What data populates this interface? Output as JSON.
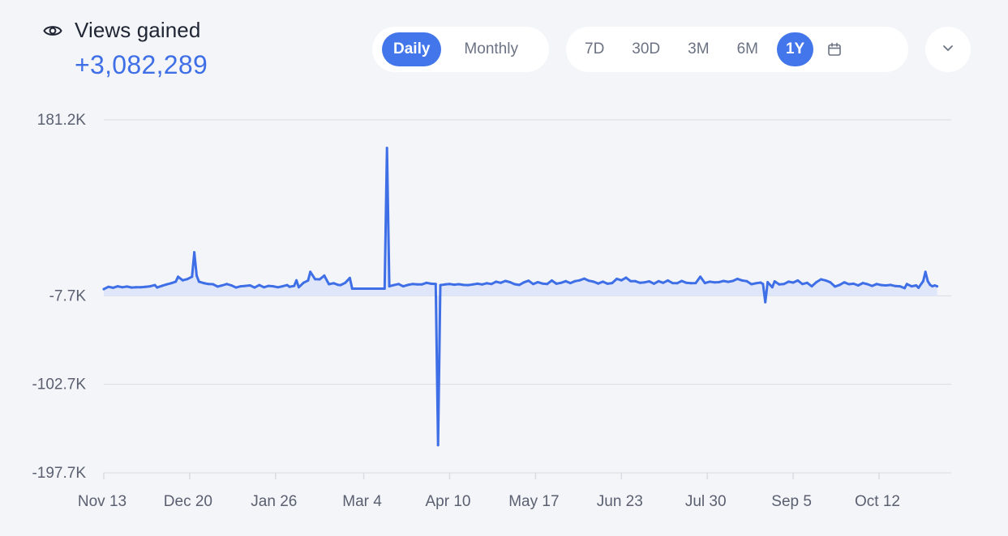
{
  "header": {
    "icon": "eye-icon",
    "title": "Views gained",
    "total": "+3,082,289"
  },
  "granularity": {
    "options": [
      "Daily",
      "Monthly"
    ],
    "selected": "Daily"
  },
  "ranges": {
    "options": [
      "7D",
      "30D",
      "3M",
      "6M",
      "1Y"
    ],
    "selected": "1Y",
    "calendar_icon": "calendar-icon"
  },
  "expand_icon": "chevron-down-icon",
  "colors": {
    "accent": "#4276ea",
    "line": "#3f6fe6",
    "fill": "#dfe6f9",
    "grid": "#d9dce3",
    "background": "#f4f5f9"
  },
  "chart_data": {
    "type": "area",
    "title": "",
    "xlabel": "",
    "ylabel": "",
    "ylim": [
      -197.7,
      181.2
    ],
    "y_unit": "K",
    "y_ticks": [
      "181.2K",
      "-7.7K",
      "-102.7K",
      "-197.7K"
    ],
    "y_tick_values": [
      181.2,
      -7.7,
      -102.7,
      -197.7
    ],
    "x_ticks": [
      "Nov 13",
      "Dec 20",
      "Jan 26",
      "Mar 4",
      "Apr 10",
      "May 17",
      "Jun 23",
      "Jul 30",
      "Sep 5",
      "Oct 12"
    ],
    "x_tick_dates": [
      "2023-11-13",
      "2023-12-20",
      "2024-01-26",
      "2024-03-04",
      "2024-04-10",
      "2024-05-17",
      "2024-06-23",
      "2024-07-30",
      "2024-09-05",
      "2024-10-12"
    ],
    "x_range": [
      "2023-11-13",
      "2024-11-06"
    ],
    "grid": true,
    "legend": "none",
    "series": [
      {
        "points": [
          [
            "2023-11-13",
            -0.5
          ],
          [
            "2023-11-15",
            2.0
          ],
          [
            "2023-11-17",
            1.0
          ],
          [
            "2023-11-19",
            2.5
          ],
          [
            "2023-11-21",
            1.5
          ],
          [
            "2023-11-23",
            2.3
          ],
          [
            "2023-11-25",
            1.2
          ],
          [
            "2023-11-27",
            1.5
          ],
          [
            "2023-11-29",
            1.5
          ],
          [
            "2023-12-01",
            2.0
          ],
          [
            "2023-12-03",
            2.5
          ],
          [
            "2023-12-05",
            3.8
          ],
          [
            "2023-12-06",
            1.2
          ],
          [
            "2023-12-08",
            3.0
          ],
          [
            "2023-12-10",
            4.5
          ],
          [
            "2023-12-12",
            5.8
          ],
          [
            "2023-12-14",
            7.5
          ],
          [
            "2023-12-15",
            12.8
          ],
          [
            "2023-12-17",
            9.0
          ],
          [
            "2023-12-19",
            10.3
          ],
          [
            "2023-12-21",
            12.8
          ],
          [
            "2023-12-22",
            39.0
          ],
          [
            "2023-12-23",
            14.0
          ],
          [
            "2023-12-24",
            7.5
          ],
          [
            "2023-12-26",
            6.0
          ],
          [
            "2023-12-28",
            5.0
          ],
          [
            "2023-12-30",
            4.8
          ],
          [
            "2024-01-01",
            2.3
          ],
          [
            "2024-01-03",
            3.5
          ],
          [
            "2024-01-05",
            5.0
          ],
          [
            "2024-01-07",
            3.5
          ],
          [
            "2024-01-09",
            1.2
          ],
          [
            "2024-01-11",
            2.5
          ],
          [
            "2024-01-13",
            3.0
          ],
          [
            "2024-01-15",
            3.5
          ],
          [
            "2024-01-17",
            1.2
          ],
          [
            "2024-01-19",
            3.8
          ],
          [
            "2024-01-21",
            1.5
          ],
          [
            "2024-01-23",
            3.0
          ],
          [
            "2024-01-25",
            2.5
          ],
          [
            "2024-01-27",
            1.5
          ],
          [
            "2024-01-29",
            2.5
          ],
          [
            "2024-01-31",
            3.8
          ],
          [
            "2024-02-01",
            2.0
          ],
          [
            "2024-02-03",
            3.0
          ],
          [
            "2024-02-04",
            9.0
          ],
          [
            "2024-02-05",
            1.5
          ],
          [
            "2024-02-07",
            6.3
          ],
          [
            "2024-02-09",
            8.8
          ],
          [
            "2024-02-10",
            18.0
          ],
          [
            "2024-02-12",
            10.3
          ],
          [
            "2024-02-14",
            10.0
          ],
          [
            "2024-02-16",
            14.0
          ],
          [
            "2024-02-18",
            4.8
          ],
          [
            "2024-02-20",
            5.8
          ],
          [
            "2024-02-22",
            4.0
          ],
          [
            "2024-02-23",
            3.8
          ],
          [
            "2024-02-25",
            6.3
          ],
          [
            "2024-02-27",
            11.5
          ],
          [
            "2024-02-28",
            0.0
          ],
          [
            "2024-03-13",
            0.0
          ],
          [
            "2024-03-14",
            151.0
          ],
          [
            "2024-03-15",
            2.5
          ],
          [
            "2024-03-17",
            3.8
          ],
          [
            "2024-03-19",
            5.0
          ],
          [
            "2024-03-21",
            2.5
          ],
          [
            "2024-03-23",
            4.0
          ],
          [
            "2024-03-25",
            5.0
          ],
          [
            "2024-03-27",
            4.5
          ],
          [
            "2024-03-29",
            4.5
          ],
          [
            "2024-03-31",
            6.3
          ],
          [
            "2024-04-02",
            5.3
          ],
          [
            "2024-04-04",
            5.0
          ],
          [
            "2024-04-05",
            -168.0
          ],
          [
            "2024-04-06",
            3.8
          ],
          [
            "2024-04-08",
            4.5
          ],
          [
            "2024-04-10",
            5.0
          ],
          [
            "2024-04-12",
            4.3
          ],
          [
            "2024-04-14",
            4.8
          ],
          [
            "2024-04-16",
            4.0
          ],
          [
            "2024-04-18",
            3.8
          ],
          [
            "2024-04-20",
            4.5
          ],
          [
            "2024-04-22",
            5.3
          ],
          [
            "2024-04-24",
            4.5
          ],
          [
            "2024-04-26",
            5.8
          ],
          [
            "2024-04-28",
            5.0
          ],
          [
            "2024-04-30",
            7.5
          ],
          [
            "2024-05-02",
            6.3
          ],
          [
            "2024-05-04",
            8.3
          ],
          [
            "2024-05-06",
            7.0
          ],
          [
            "2024-05-08",
            4.8
          ],
          [
            "2024-05-10",
            4.0
          ],
          [
            "2024-05-12",
            6.8
          ],
          [
            "2024-05-14",
            8.5
          ],
          [
            "2024-05-16",
            5.0
          ],
          [
            "2024-05-18",
            7.0
          ],
          [
            "2024-05-20",
            5.5
          ],
          [
            "2024-05-22",
            5.0
          ],
          [
            "2024-05-24",
            8.8
          ],
          [
            "2024-05-26",
            5.3
          ],
          [
            "2024-05-28",
            6.3
          ],
          [
            "2024-05-30",
            8.0
          ],
          [
            "2024-06-01",
            6.0
          ],
          [
            "2024-06-03",
            8.0
          ],
          [
            "2024-06-05",
            9.0
          ],
          [
            "2024-06-07",
            10.8
          ],
          [
            "2024-06-09",
            8.5
          ],
          [
            "2024-06-11",
            7.5
          ],
          [
            "2024-06-13",
            5.5
          ],
          [
            "2024-06-15",
            7.5
          ],
          [
            "2024-06-17",
            5.3
          ],
          [
            "2024-06-19",
            6.0
          ],
          [
            "2024-06-21",
            10.5
          ],
          [
            "2024-06-23",
            9.0
          ],
          [
            "2024-06-25",
            11.8
          ],
          [
            "2024-06-27",
            8.0
          ],
          [
            "2024-06-29",
            8.0
          ],
          [
            "2024-07-01",
            6.3
          ],
          [
            "2024-07-03",
            6.8
          ],
          [
            "2024-07-05",
            7.8
          ],
          [
            "2024-07-07",
            5.3
          ],
          [
            "2024-07-09",
            8.0
          ],
          [
            "2024-07-11",
            6.3
          ],
          [
            "2024-07-13",
            8.8
          ],
          [
            "2024-07-15",
            6.0
          ],
          [
            "2024-07-17",
            5.8
          ],
          [
            "2024-07-19",
            8.3
          ],
          [
            "2024-07-21",
            6.3
          ],
          [
            "2024-07-23",
            5.8
          ],
          [
            "2024-07-25",
            6.0
          ],
          [
            "2024-07-27",
            12.8
          ],
          [
            "2024-07-29",
            6.0
          ],
          [
            "2024-07-31",
            7.5
          ],
          [
            "2024-08-02",
            6.8
          ],
          [
            "2024-08-04",
            7.0
          ],
          [
            "2024-08-06",
            8.3
          ],
          [
            "2024-08-08",
            7.3
          ],
          [
            "2024-08-10",
            8.3
          ],
          [
            "2024-08-12",
            10.5
          ],
          [
            "2024-08-14",
            8.8
          ],
          [
            "2024-08-16",
            8.0
          ],
          [
            "2024-08-18",
            4.8
          ],
          [
            "2024-08-20",
            5.8
          ],
          [
            "2024-08-22",
            6.5
          ],
          [
            "2024-08-23",
            5.0
          ],
          [
            "2024-08-24",
            -14.5
          ],
          [
            "2024-08-25",
            7.0
          ],
          [
            "2024-08-27",
            1.5
          ],
          [
            "2024-08-28",
            7.8
          ],
          [
            "2024-08-30",
            4.5
          ],
          [
            "2024-09-01",
            5.0
          ],
          [
            "2024-09-03",
            7.5
          ],
          [
            "2024-09-05",
            6.5
          ],
          [
            "2024-09-07",
            8.8
          ],
          [
            "2024-09-09",
            5.0
          ],
          [
            "2024-09-11",
            6.3
          ],
          [
            "2024-09-13",
            2.5
          ],
          [
            "2024-09-15",
            7.0
          ],
          [
            "2024-09-17",
            10.0
          ],
          [
            "2024-09-19",
            8.8
          ],
          [
            "2024-09-21",
            6.8
          ],
          [
            "2024-09-23",
            2.3
          ],
          [
            "2024-09-25",
            4.0
          ],
          [
            "2024-09-27",
            6.8
          ],
          [
            "2024-09-29",
            4.8
          ],
          [
            "2024-10-01",
            5.3
          ],
          [
            "2024-10-03",
            3.5
          ],
          [
            "2024-10-05",
            6.0
          ],
          [
            "2024-10-07",
            4.8
          ],
          [
            "2024-10-09",
            3.0
          ],
          [
            "2024-10-11",
            5.0
          ],
          [
            "2024-10-13",
            3.8
          ],
          [
            "2024-10-15",
            3.5
          ],
          [
            "2024-10-17",
            4.0
          ],
          [
            "2024-10-19",
            2.8
          ],
          [
            "2024-10-21",
            2.5
          ],
          [
            "2024-10-23",
            0.5
          ],
          [
            "2024-10-24",
            5.0
          ],
          [
            "2024-10-26",
            2.5
          ],
          [
            "2024-10-28",
            3.5
          ],
          [
            "2024-10-29",
            1.0
          ],
          [
            "2024-10-31",
            8.0
          ],
          [
            "2024-11-01",
            18.0
          ],
          [
            "2024-11-02",
            8.0
          ],
          [
            "2024-11-03",
            4.0
          ],
          [
            "2024-11-04",
            2.5
          ],
          [
            "2024-11-05",
            3.5
          ],
          [
            "2024-11-06",
            2.5
          ]
        ]
      }
    ]
  }
}
